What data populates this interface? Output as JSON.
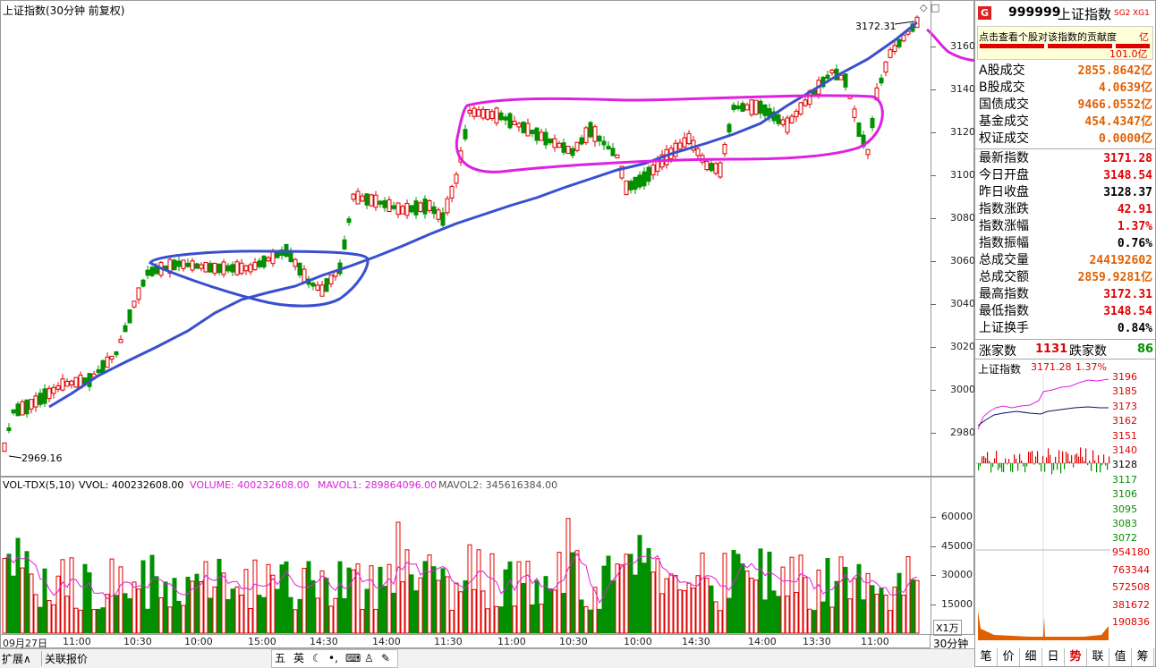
{
  "chart_panel": {
    "title": "上证指数(30分钟 前复权)",
    "high_label": "3172.31",
    "low_label": "2969.16",
    "y_ticks": [
      "3160",
      "3140",
      "3120",
      "3100",
      "3080",
      "3060",
      "3040",
      "3020",
      "3000",
      "2980"
    ],
    "x_ticks": [
      "09月27日",
      "11:00",
      "10:30",
      "10:00",
      "15:00",
      "14:30",
      "14:00",
      "11:30",
      "11:00",
      "10:30",
      "10:00",
      "14:30",
      "14:00",
      "13:30",
      "11:00"
    ],
    "period_button": "30分钟"
  },
  "volume_panel": {
    "indicator": "VOL-TDX(5,10)",
    "vol_text": "VVOL: 400232608.00",
    "volume_text": "VOLUME: 400232608.00",
    "mavol1_text": "MAVOL1: 289864096.00",
    "mavol2_text": "MAVOL2: 345616384.00",
    "y_ticks": [
      "60000",
      "45000",
      "30000",
      "15000"
    ],
    "unit": "X1万"
  },
  "bottom_tabs": {
    "expand": "扩展∧",
    "related": "关联报价"
  },
  "tray_icons": [
    "五",
    "英",
    "moon-icon",
    "dot-icon",
    "keyboard-icon",
    "shirt-icon",
    "wrench-icon"
  ],
  "info_panel": {
    "badge": "G",
    "code": "999999",
    "name": "上证指数",
    "tags": [
      "SG2",
      "XG1"
    ],
    "hint": "点击查看个股对该指数的贡献度",
    "hint_suffix": "亿",
    "contribution": "101.0亿",
    "rows1": [
      {
        "k": "A股成交",
        "v": "2855.8642亿"
      },
      {
        "k": "B股成交",
        "v": "4.0639亿"
      },
      {
        "k": "国债成交",
        "v": "9466.0552亿"
      },
      {
        "k": "基金成交",
        "v": "454.4347亿"
      },
      {
        "k": "权证成交",
        "v": "0.0000亿"
      }
    ],
    "rows2": [
      {
        "k": "最新指数",
        "v": "3171.28",
        "c": "red"
      },
      {
        "k": "今日开盘",
        "v": "3148.54",
        "c": "red"
      },
      {
        "k": "昨日收盘",
        "v": "3128.37",
        "c": "blk"
      },
      {
        "k": "指数涨跌",
        "v": "42.91",
        "c": "red"
      },
      {
        "k": "指数涨幅",
        "v": "1.37%",
        "c": "red"
      },
      {
        "k": "指数振幅",
        "v": "0.76%",
        "c": "blk"
      },
      {
        "k": "总成交量",
        "v": "244192602",
        "c": "org"
      },
      {
        "k": "总成交额",
        "v": "2859.9281亿",
        "c": "org"
      },
      {
        "k": "最高指数",
        "v": "3172.31",
        "c": "red"
      },
      {
        "k": "最低指数",
        "v": "3148.54",
        "c": "red"
      },
      {
        "k": "上证换手",
        "v": "0.84%",
        "c": "blk"
      }
    ],
    "up_label": "涨家数",
    "up_count": "1131",
    "down_label": "跌家数",
    "down_count": "86"
  },
  "mini_chart": {
    "title": "上证指数",
    "price": "3171.28",
    "pct": "1.37%",
    "price_ticks": [
      "3196",
      "3185",
      "3173",
      "3162",
      "3151",
      "3140",
      "3128",
      "3117",
      "3106",
      "3095",
      "3083",
      "3072"
    ],
    "vol_ticks": [
      "954180",
      "763344",
      "572508",
      "381672",
      "190836"
    ]
  },
  "side_tabs": [
    "笔",
    "价",
    "细",
    "日",
    "势",
    "联",
    "值",
    "筹"
  ],
  "colors": {
    "up": "#e00000",
    "down": "#009000",
    "ma": "#3a4fcf",
    "pink": "#e020e0"
  }
}
